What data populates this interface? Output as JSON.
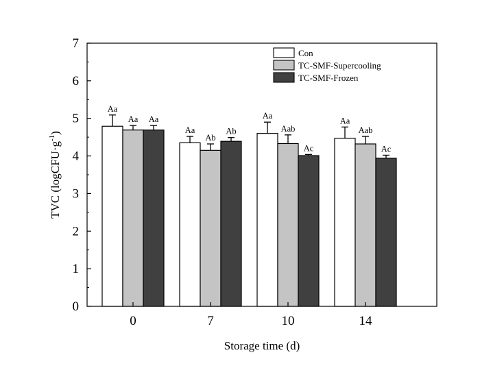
{
  "chart_data": {
    "type": "bar",
    "title": "",
    "xlabel": "Storage time (d)",
    "ylabel": "TVC (logCFU·g⁻¹)",
    "ylabel_main": "TVC (logCFU·g",
    "ylabel_sup": "-1",
    "ylabel_close": ")",
    "ylim": [
      0,
      7
    ],
    "yticks": [
      "0",
      "1",
      "2",
      "3",
      "4",
      "5",
      "6",
      "7"
    ],
    "categories": [
      "0",
      "7",
      "10",
      "14"
    ],
    "legend_position": "top-right",
    "series": [
      {
        "name": "Con",
        "color": "#ffffff",
        "values": [
          4.79,
          4.35,
          4.6,
          4.47
        ],
        "errors": [
          0.3,
          0.17,
          0.3,
          0.3
        ],
        "labels": [
          "Aa",
          "Aa",
          "Aa",
          "Aa"
        ]
      },
      {
        "name": "TC-SMF-Supercooling",
        "color": "#c4c4c4",
        "values": [
          4.69,
          4.15,
          4.33,
          4.32
        ],
        "errors": [
          0.12,
          0.17,
          0.23,
          0.2
        ],
        "labels": [
          "Aa",
          "Ab",
          "Aab",
          "Aab"
        ]
      },
      {
        "name": "TC-SMF-Frozen",
        "color": "#404040",
        "values": [
          4.69,
          4.39,
          4.01,
          3.94
        ],
        "errors": [
          0.12,
          0.1,
          0.03,
          0.08
        ],
        "labels": [
          "Aa",
          "Ab",
          "Ac",
          "Ac"
        ]
      }
    ]
  }
}
